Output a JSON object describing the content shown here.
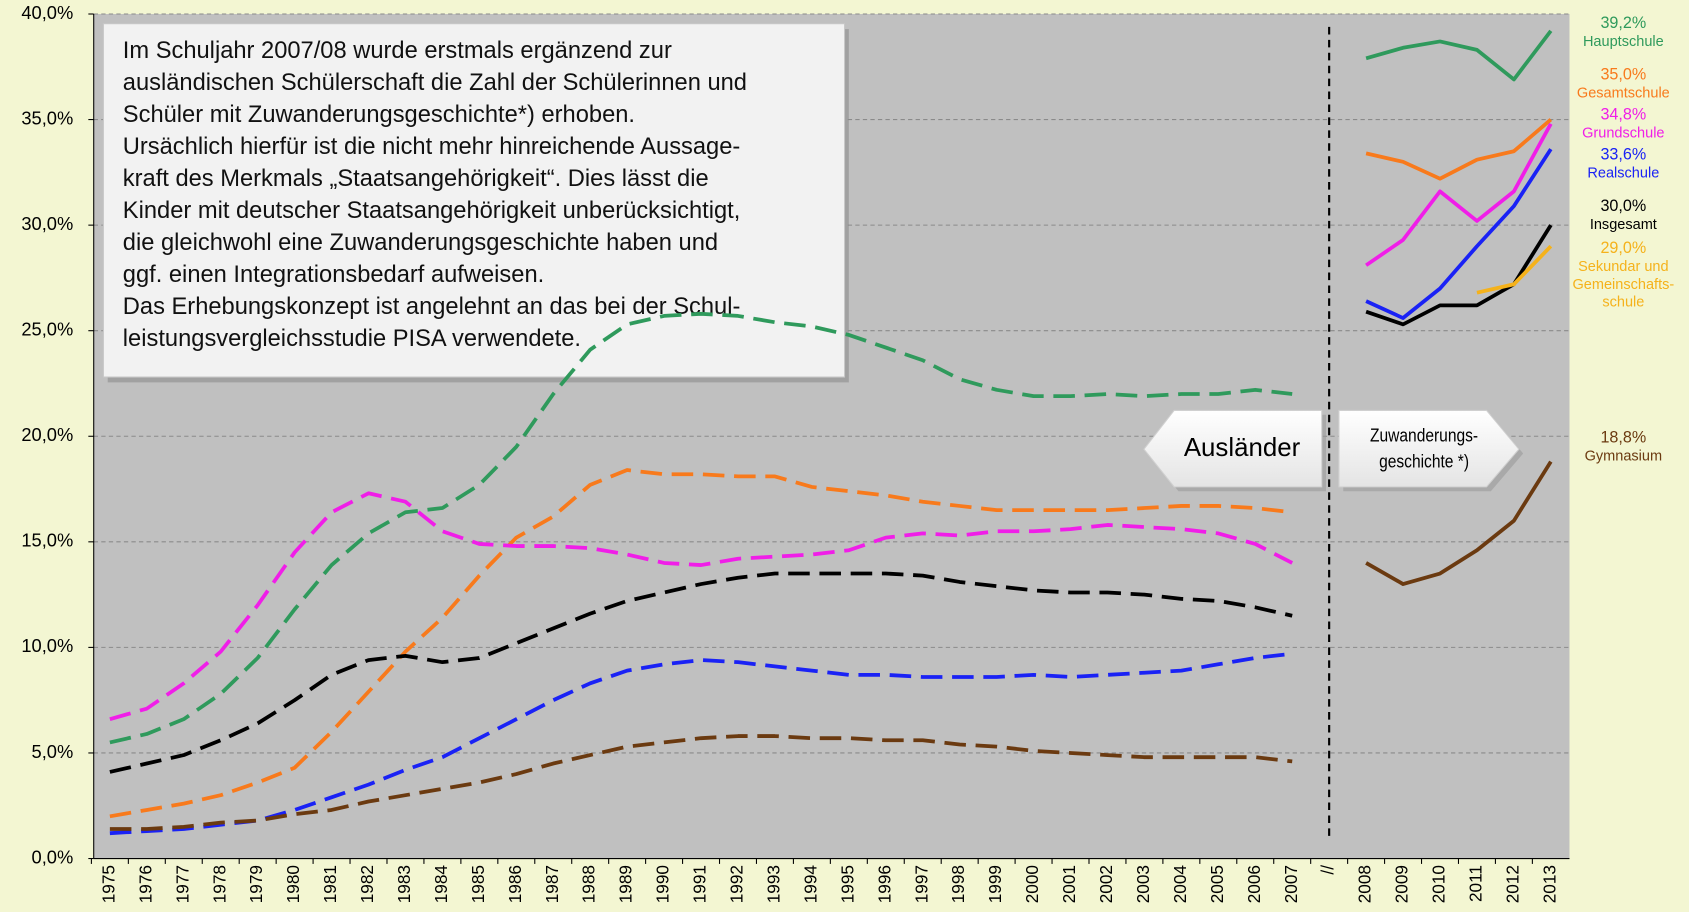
{
  "chart_data": {
    "type": "line",
    "categories": [
      "1975",
      "1976",
      "1977",
      "1978",
      "1979",
      "1980",
      "1981",
      "1982",
      "1983",
      "1984",
      "1985",
      "1986",
      "1987",
      "1988",
      "1989",
      "1990",
      "1991",
      "1992",
      "1993",
      "1994",
      "1995",
      "1996",
      "1997",
      "1998",
      "1999",
      "2000",
      "2001",
      "2002",
      "2003",
      "2004",
      "2005",
      "2006",
      "2007",
      "//",
      "2008",
      "2009",
      "2010",
      "2011",
      "2012",
      "2013"
    ],
    "ylim": [
      0,
      40
    ],
    "yticks": [
      {
        "value": 0,
        "label": "0,0%"
      },
      {
        "value": 5,
        "label": "5,0%"
      },
      {
        "value": 10,
        "label": "10,0%"
      },
      {
        "value": 15,
        "label": "15,0%"
      },
      {
        "value": 20,
        "label": "20,0%"
      },
      {
        "value": 25,
        "label": "25,0%"
      },
      {
        "value": 30,
        "label": "30,0%"
      },
      {
        "value": 35,
        "label": "35,0%"
      },
      {
        "value": 40,
        "label": "40,0%"
      }
    ],
    "grid": true,
    "series": [
      {
        "name": "Hauptschule",
        "color": "#2f9a5c",
        "values": [
          5.5,
          5.9,
          6.6,
          7.8,
          9.5,
          11.8,
          13.9,
          15.4,
          16.4,
          16.6,
          17.7,
          19.5,
          22.0,
          24.1,
          25.3,
          25.7,
          25.8,
          25.7,
          25.4,
          25.2,
          24.8,
          24.2,
          23.6,
          22.7,
          22.2,
          21.9,
          21.9,
          22.0,
          21.9,
          22.0,
          22.0,
          22.2,
          22.0,
          null,
          37.9,
          38.4,
          38.7,
          38.3,
          36.9,
          39.2
        ],
        "value_labels": [
          null,
          null,
          null,
          null,
          null,
          null,
          null,
          null,
          null,
          null,
          null,
          null,
          null,
          null,
          null,
          null,
          null,
          null,
          null,
          null,
          null,
          null,
          null,
          null,
          null,
          null,
          null,
          null,
          null,
          null,
          null,
          null,
          null,
          null,
          null,
          null,
          null,
          null,
          null,
          "39,2%"
        ]
      },
      {
        "name": "Gesamtschule",
        "color": "#f87a1c",
        "values": [
          2.0,
          2.3,
          2.6,
          3.0,
          3.6,
          4.3,
          6.0,
          7.9,
          9.8,
          11.4,
          13.4,
          15.2,
          16.2,
          17.7,
          18.4,
          18.2,
          18.2,
          18.1,
          18.1,
          17.6,
          17.4,
          17.2,
          16.9,
          16.7,
          16.5,
          16.5,
          16.5,
          16.5,
          16.6,
          16.7,
          16.7,
          16.6,
          16.4,
          null,
          33.4,
          33.0,
          32.2,
          33.1,
          33.5,
          35.0
        ],
        "value_labels": [
          null,
          null,
          null,
          null,
          null,
          null,
          null,
          null,
          null,
          null,
          null,
          null,
          null,
          null,
          null,
          null,
          null,
          null,
          null,
          null,
          null,
          null,
          null,
          null,
          null,
          null,
          null,
          null,
          null,
          null,
          null,
          null,
          null,
          null,
          null,
          null,
          null,
          null,
          null,
          "35,0%"
        ]
      },
      {
        "name": "Grundschule",
        "color": "#f01ee8",
        "values": [
          6.6,
          7.1,
          8.3,
          9.8,
          12.0,
          14.5,
          16.4,
          17.3,
          16.9,
          15.5,
          14.9,
          14.8,
          14.8,
          14.7,
          14.4,
          14.0,
          13.9,
          14.2,
          14.3,
          14.4,
          14.6,
          15.2,
          15.4,
          15.3,
          15.5,
          15.5,
          15.6,
          15.8,
          15.7,
          15.6,
          15.4,
          14.9,
          14.0,
          null,
          28.1,
          29.3,
          31.6,
          30.2,
          31.6,
          34.8
        ],
        "value_labels": [
          null,
          null,
          null,
          null,
          null,
          null,
          null,
          null,
          null,
          null,
          null,
          null,
          null,
          null,
          null,
          null,
          null,
          null,
          null,
          null,
          null,
          null,
          null,
          null,
          null,
          null,
          null,
          null,
          null,
          null,
          null,
          null,
          null,
          null,
          null,
          null,
          null,
          null,
          null,
          "34,8%"
        ]
      },
      {
        "name": "Realschule",
        "color": "#1a22f5",
        "values": [
          1.2,
          1.3,
          1.4,
          1.6,
          1.8,
          2.3,
          2.9,
          3.5,
          4.2,
          4.8,
          5.7,
          6.6,
          7.5,
          8.3,
          8.9,
          9.2,
          9.4,
          9.3,
          9.1,
          8.9,
          8.7,
          8.7,
          8.6,
          8.6,
          8.6,
          8.7,
          8.6,
          8.7,
          8.8,
          8.9,
          9.2,
          9.5,
          9.7,
          null,
          26.4,
          25.6,
          27.0,
          29.0,
          30.9,
          33.6
        ],
        "value_labels": [
          null,
          null,
          null,
          null,
          null,
          null,
          null,
          null,
          null,
          null,
          null,
          null,
          null,
          null,
          null,
          null,
          null,
          null,
          null,
          null,
          null,
          null,
          null,
          null,
          null,
          null,
          null,
          null,
          null,
          null,
          null,
          null,
          null,
          null,
          null,
          null,
          null,
          null,
          null,
          "33,6%"
        ]
      },
      {
        "name": "Insgesamt",
        "color": "#000000",
        "values": [
          4.1,
          4.5,
          4.9,
          5.6,
          6.4,
          7.5,
          8.7,
          9.4,
          9.6,
          9.3,
          9.5,
          10.2,
          10.9,
          11.6,
          12.2,
          12.6,
          13.0,
          13.3,
          13.5,
          13.5,
          13.5,
          13.5,
          13.4,
          13.1,
          12.9,
          12.7,
          12.6,
          12.6,
          12.5,
          12.3,
          12.2,
          11.9,
          11.5,
          null,
          25.9,
          25.3,
          26.2,
          26.2,
          27.2,
          30.0
        ],
        "value_labels": [
          null,
          null,
          null,
          null,
          null,
          null,
          null,
          null,
          null,
          null,
          null,
          null,
          null,
          null,
          null,
          null,
          null,
          null,
          null,
          null,
          null,
          null,
          null,
          null,
          null,
          null,
          null,
          null,
          null,
          null,
          null,
          null,
          null,
          null,
          null,
          null,
          null,
          null,
          null,
          "30,0%"
        ]
      },
      {
        "name": "Sekundar und\nGemeinschafts-\nschule",
        "color": "#f5b21b",
        "values": [
          null,
          null,
          null,
          null,
          null,
          null,
          null,
          null,
          null,
          null,
          null,
          null,
          null,
          null,
          null,
          null,
          null,
          null,
          null,
          null,
          null,
          null,
          null,
          null,
          null,
          null,
          null,
          null,
          null,
          null,
          null,
          null,
          null,
          null,
          null,
          null,
          null,
          26.8,
          27.2,
          29.0
        ],
        "value_labels": [
          null,
          null,
          null,
          null,
          null,
          null,
          null,
          null,
          null,
          null,
          null,
          null,
          null,
          null,
          null,
          null,
          null,
          null,
          null,
          null,
          null,
          null,
          null,
          null,
          null,
          null,
          null,
          null,
          null,
          null,
          null,
          null,
          null,
          null,
          null,
          null,
          null,
          null,
          null,
          "29,0%"
        ]
      },
      {
        "name": "Gymnasium",
        "color": "#6b3a10",
        "values": [
          1.4,
          1.4,
          1.5,
          1.7,
          1.8,
          2.1,
          2.3,
          2.7,
          3.0,
          3.3,
          3.6,
          4.0,
          4.5,
          4.9,
          5.3,
          5.5,
          5.7,
          5.8,
          5.8,
          5.7,
          5.7,
          5.6,
          5.6,
          5.4,
          5.3,
          5.1,
          5.0,
          4.9,
          4.8,
          4.8,
          4.8,
          4.8,
          4.6,
          null,
          14.0,
          13.0,
          13.5,
          14.6,
          16.0,
          18.8
        ],
        "value_labels": [
          null,
          null,
          null,
          null,
          null,
          null,
          null,
          null,
          null,
          null,
          null,
          null,
          null,
          null,
          null,
          null,
          null,
          null,
          null,
          null,
          null,
          null,
          null,
          null,
          null,
          null,
          null,
          null,
          null,
          null,
          null,
          null,
          null,
          null,
          null,
          null,
          null,
          null,
          null,
          "18,8%"
        ]
      }
    ],
    "annotations": {
      "text_box": [
        "Im Schuljahr 2007/08 wurde erstmals ergänzend zur",
        "ausländischen Schülerschaft die Zahl der Schülerinnen und",
        "Schüler mit Zuwanderungsgeschichte*) erhoben.",
        "Ursächlich hierfür ist die nicht mehr hinreichende Aussage-",
        "kraft des Merkmals „Staatsangehörigkeit“. Dies lässt die",
        "Kinder mit deutscher Staatsangehörigkeit unberücksichtigt,",
        "die gleichwohl eine Zuwanderungsgeschichte haben und",
        "ggf. einen Integrationsbedarf aufweisen.",
        "Das Erhebungskonzept ist angelehnt an das bei der Schul-",
        "leistungsvergleichsstudie PISA verwendete."
      ],
      "arrow_left": "Ausländer",
      "arrow_right": "Zuwanderungs-\ngeschichte *)"
    }
  }
}
